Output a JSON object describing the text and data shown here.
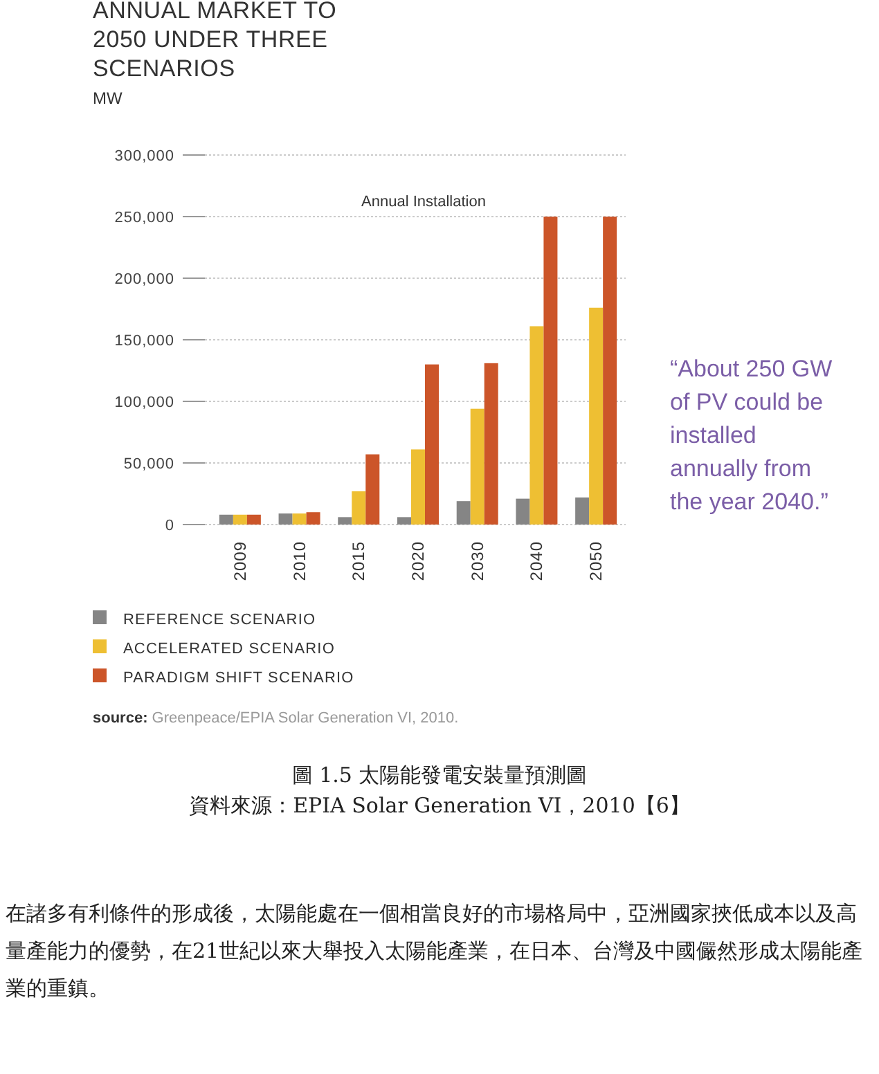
{
  "chart_data": {
    "type": "bar",
    "title": "ANNUAL MARKET TO 2050 UNDER THREE SCENARIOS",
    "subtitle": "Annual Installation",
    "ylabel": "MW",
    "categories": [
      "2009",
      "2010",
      "2015",
      "2020",
      "2030",
      "2040",
      "2050"
    ],
    "series": [
      {
        "name": "REFERENCE SCENARIO",
        "color": "#858585",
        "values": [
          8000,
          9000,
          6000,
          6000,
          19000,
          21000,
          22000
        ]
      },
      {
        "name": "ACCELERATED SCENARIO",
        "color": "#eebf33",
        "values": [
          8000,
          9000,
          27000,
          61000,
          94000,
          161000,
          176000
        ]
      },
      {
        "name": "PARADIGM SHIFT SCENARIO",
        "color": "#cc5529",
        "values": [
          8000,
          10000,
          57000,
          130000,
          131000,
          250000,
          250000
        ]
      }
    ],
    "ylim": [
      0,
      300000
    ],
    "yticks": [
      {
        "value": 0,
        "label": "0"
      },
      {
        "value": 50000,
        "label": "50,000"
      },
      {
        "value": 100000,
        "label": "100,000"
      },
      {
        "value": 150000,
        "label": "150,000"
      },
      {
        "value": 200000,
        "label": "200,000"
      },
      {
        "value": 250000,
        "label": "250,000"
      },
      {
        "value": 300000,
        "label": "300,000"
      }
    ],
    "grid": "y",
    "legend": "bottom left",
    "annotations": [
      "“About 250 GW of PV could be installed annually from the year 2040.”",
      "**source:** Greenpeace/EPIA Solar Generation VI, 2010.",
      "圖 1.5 太陽能發電安裝量預測圖",
      "資料來源：EPIA Solar Generation VI，2010【6】",
      "在諸多有利條件的形成後，太陽能處在一個相當良好的市場格局中，亞洲國家挾低成本以及高量產能力的優勢，在21世紀以來大舉投入太陽能產業，在日本、台灣及中國儼然形成太陽能產業的重鎮。"
    ]
  }
}
